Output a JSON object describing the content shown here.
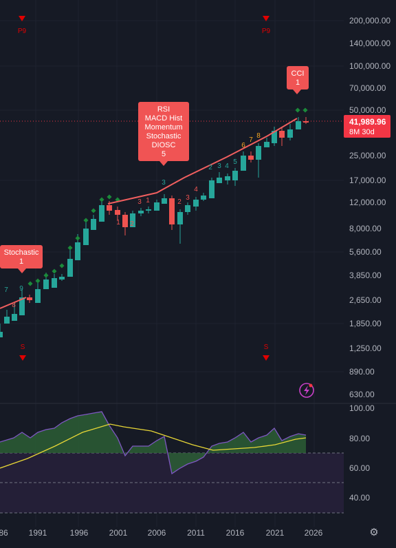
{
  "price_pane": {
    "y_axis_labels": [
      "200,000.00",
      "140,000.00",
      "100,000.00",
      "70,000.00",
      "50,000.00",
      "25,000.00",
      "17,000.00",
      "12,000.00",
      "8,000.00",
      "5,600.00",
      "3,850.00",
      "2,650.00",
      "1,850.00",
      "1,250.00",
      "890.00",
      "630.00"
    ],
    "current_price": "41,989.96",
    "countdown": "8M 30d",
    "callouts": [
      {
        "id": "stochastic",
        "lines": [
          "Stochastic",
          "1"
        ]
      },
      {
        "id": "rsi",
        "lines": [
          "RSI",
          "MACD Hist",
          "Momentum",
          "Stochastic",
          "DIOSC",
          "5"
        ]
      },
      {
        "id": "cci",
        "lines": [
          "CCI",
          "1"
        ]
      }
    ],
    "markers": [
      {
        "id": "p9-left",
        "text": "P9"
      },
      {
        "id": "p9-right",
        "text": "P9"
      },
      {
        "id": "s-left",
        "text": "S"
      },
      {
        "id": "s-right",
        "text": "S"
      }
    ],
    "count_labels": [
      {
        "text": "7",
        "color": "#26a69a"
      },
      {
        "text": "8",
        "color": "#ef5350"
      },
      {
        "text": "9",
        "color": "#26a69a"
      },
      {
        "text": "1",
        "color": "#ef5350"
      },
      {
        "text": "2",
        "color": "#ef5350"
      },
      {
        "text": "3",
        "color": "#ef5350"
      },
      {
        "text": "1",
        "color": "#ef5350"
      },
      {
        "text": "3",
        "color": "#26a69a"
      },
      {
        "text": "2",
        "color": "#ef5350"
      },
      {
        "text": "3",
        "color": "#ef5350"
      },
      {
        "text": "4",
        "color": "#ef5350"
      },
      {
        "text": "2",
        "color": "#26a69a"
      },
      {
        "text": "3",
        "color": "#26a69a"
      },
      {
        "text": "4",
        "color": "#26a69a"
      },
      {
        "text": "5",
        "color": "#26a69a"
      },
      {
        "text": "6",
        "color": "#f5a623"
      },
      {
        "text": "7",
        "color": "#f5a623"
      },
      {
        "text": "8",
        "color": "#f5a623"
      }
    ]
  },
  "indicator_pane": {
    "y_axis_labels": [
      "100.00",
      "80.00",
      "60.00",
      "40.00"
    ]
  },
  "time_axis": {
    "labels": [
      "86",
      "1991",
      "1996",
      "2001",
      "2006",
      "2011",
      "2016",
      "2021",
      "2026"
    ]
  },
  "icons": {
    "lightning": "lightning-icon",
    "settings": "settings-gear-icon"
  },
  "colors": {
    "background": "#161a25",
    "up": "#26a69a",
    "down": "#ef5350",
    "callout": "#f05454",
    "price_label": "#f23645",
    "rsi_line": "#7e57c2",
    "ma_line": "#e8d736",
    "marker": "#e00000"
  }
}
